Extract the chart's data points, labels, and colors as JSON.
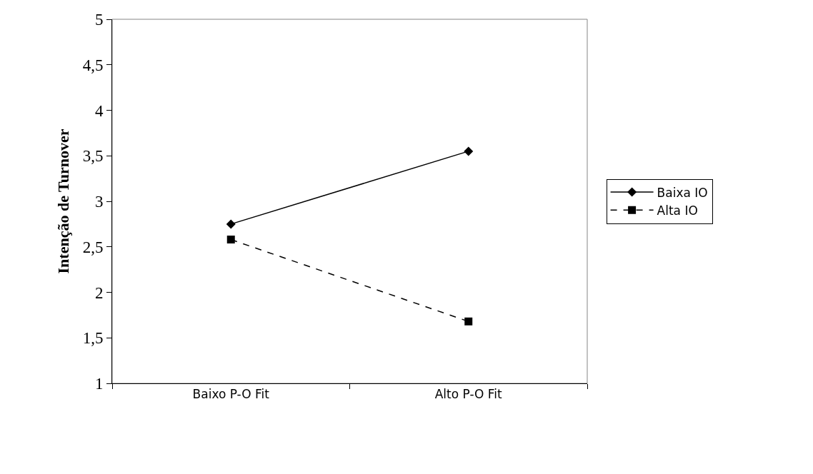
{
  "chart_data": {
    "type": "line",
    "ylabel": "Intenção de Turnover",
    "categories": [
      "Baixo P-O Fit",
      "Alto P-O Fit"
    ],
    "series": [
      {
        "name": "Baixa IO",
        "color": "#000000",
        "values": [
          2.75,
          3.55
        ],
        "marker": "diamond",
        "line_style": "solid"
      },
      {
        "name": "Alta IO",
        "color": "#000000",
        "values": [
          2.58,
          1.68
        ],
        "marker": "square",
        "line_style": "dashed"
      }
    ],
    "ylim": [
      1,
      5
    ],
    "yticks": [
      1,
      {
        "value": 1.5,
        "label": "1,5"
      },
      2,
      {
        "value": 2.5,
        "label": "2,5"
      },
      3,
      {
        "value": 3.5,
        "label": "3,5"
      },
      4,
      {
        "value": 4.5,
        "label": "4,5"
      },
      5
    ],
    "grid": false,
    "legend": "right"
  }
}
